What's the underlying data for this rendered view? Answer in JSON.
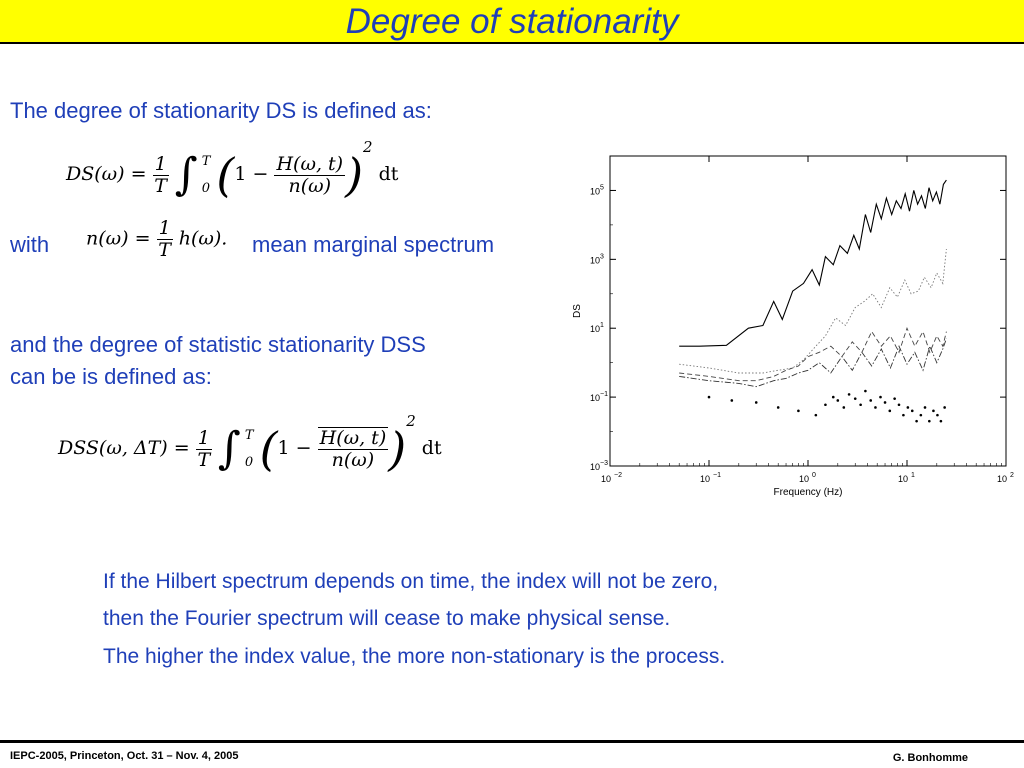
{
  "title": "Degree of stationarity",
  "intro": "The degree of stationarity DS is defined as:",
  "eq_ds": {
    "lhs": "DS(ω) = ",
    "frac_num": "1",
    "frac_den": "T",
    "int_upper": "T",
    "int_lower": "0",
    "one_minus": "1 − ",
    "inner_num": "H(ω, t)",
    "inner_den": "n(ω)",
    "power": "2",
    "dt": "dt"
  },
  "with_label": "with",
  "eq_n": {
    "lhs": "n(ω) = ",
    "frac_num": "1",
    "frac_den": "T",
    "rhs": "h(ω)."
  },
  "mean_marginal": "mean marginal spectrum",
  "dss_line1": "and the degree of statistic stationarity DSS",
  "dss_line2": "can be is defined as:",
  "eq_dss": {
    "lhs": "DSS(ω, ΔT) = ",
    "frac_num": "1",
    "frac_den": "T",
    "int_upper": "T",
    "int_lower": "0",
    "one_minus": "1 − ",
    "inner_num": "H(ω, t)",
    "inner_den": "n(ω)",
    "power": "2",
    "dt": "dt"
  },
  "bullets": [
    "If the Hilbert spectrum depends on time, the index will not be zero,",
    "then the Fourier spectrum will cease to make physical sense.",
    "The higher the index value, the more non-stationary is the process."
  ],
  "footer": {
    "left": "IEPC-2005, Princeton, Oct. 31 – Nov. 4, 2005",
    "right": "G. Bonhomme"
  },
  "colors": {
    "title_bg": "#ffff00",
    "text_blue": "#1f3fb8"
  },
  "chart_data": {
    "type": "line",
    "xlabel": "Frequency (Hz)",
    "ylabel": "DS",
    "xscale": "log",
    "yscale": "log",
    "xlim": [
      0.01,
      100
    ],
    "ylim": [
      0.001,
      1000000
    ],
    "x_tick_labels": [
      {
        "base": "10",
        "exp": "−2",
        "value": 0.01
      },
      {
        "base": "10",
        "exp": "−1",
        "value": 0.1
      },
      {
        "base": "10",
        "exp": "0",
        "value": 1
      },
      {
        "base": "10",
        "exp": "1",
        "value": 10
      },
      {
        "base": "10",
        "exp": "2",
        "value": 100
      }
    ],
    "y_tick_labels": [
      {
        "base": "10",
        "exp": "−3",
        "value": 0.001
      },
      {
        "base": "10",
        "exp": "−1",
        "value": 0.1
      },
      {
        "base": "10",
        "exp": "1",
        "value": 10
      },
      {
        "base": "10",
        "exp": "3",
        "value": 1000
      },
      {
        "base": "10",
        "exp": "5",
        "value": 100000
      }
    ],
    "series": [
      {
        "style": "solid",
        "x": [
          0.05,
          0.08,
          0.15,
          0.25,
          0.35,
          0.45,
          0.55,
          0.7,
          0.9,
          1.1,
          1.3,
          1.5,
          1.8,
          2.1,
          2.5,
          2.9,
          3.3,
          3.8,
          4.3,
          4.9,
          5.5,
          6.2,
          7.0,
          7.8,
          8.7,
          9.6,
          10.6,
          11.7,
          12.8,
          14.0,
          15.3,
          16.7,
          18.2,
          19.8,
          21.5,
          23.3,
          25.0
        ],
        "y": [
          3.0,
          3.0,
          3.2,
          10.0,
          12.0,
          60.0,
          18.0,
          120.0,
          200.0,
          500.0,
          180.0,
          1200.0,
          700.0,
          2500.0,
          1500.0,
          5000.0,
          2000.0,
          20000.0,
          6000.0,
          40000.0,
          15000.0,
          60000.0,
          20000.0,
          50000.0,
          30000.0,
          80000.0,
          25000.0,
          100000.0,
          40000.0,
          70000.0,
          30000.0,
          120000.0,
          50000.0,
          90000.0,
          40000.0,
          150000.0,
          200000.0
        ]
      },
      {
        "style": "dotted",
        "x": [
          0.05,
          0.1,
          0.2,
          0.35,
          0.5,
          0.7,
          0.9,
          1.2,
          1.5,
          1.9,
          2.4,
          3.0,
          3.7,
          4.5,
          5.5,
          6.7,
          8.0,
          9.5,
          11.0,
          13.0,
          15.0,
          17.5,
          20.0,
          23.0,
          25.0
        ],
        "y": [
          0.9,
          0.7,
          0.5,
          0.5,
          0.6,
          0.7,
          1.2,
          3.0,
          6.0,
          20.0,
          12.0,
          40.0,
          60.0,
          100.0,
          40.0,
          150.0,
          80.0,
          250.0,
          100.0,
          120.0,
          300.0,
          150.0,
          400.0,
          200.0,
          2000.0
        ]
      },
      {
        "style": "dashed",
        "x": [
          0.05,
          0.1,
          0.2,
          0.3,
          0.45,
          0.6,
          0.8,
          1.0,
          1.3,
          1.7,
          2.2,
          2.8,
          3.5,
          4.4,
          5.5,
          6.8,
          8.3,
          10.0,
          12.0,
          14.5,
          17.0,
          20.0,
          23.0,
          25.0
        ],
        "y": [
          0.5,
          0.4,
          0.3,
          0.3,
          0.4,
          0.6,
          0.8,
          1.5,
          2.0,
          3.0,
          1.5,
          4.0,
          2.0,
          8.0,
          3.0,
          6.0,
          2.0,
          10.0,
          3.0,
          8.0,
          2.0,
          6.0,
          3.0,
          8.0
        ]
      },
      {
        "style": "dashdot",
        "x": [
          0.05,
          0.1,
          0.2,
          0.3,
          0.45,
          0.6,
          0.8,
          1.0,
          1.3,
          1.7,
          2.2,
          2.8,
          3.5,
          4.4,
          5.5,
          6.8,
          8.3,
          10.0,
          12.0,
          14.5,
          17.0,
          20.0,
          23.0,
          25.0
        ],
        "y": [
          0.4,
          0.3,
          0.25,
          0.2,
          0.3,
          0.35,
          0.5,
          0.6,
          1.0,
          0.5,
          1.5,
          0.6,
          2.0,
          0.8,
          2.5,
          0.7,
          3.0,
          0.9,
          2.0,
          0.6,
          3.0,
          1.0,
          2.5,
          5.0
        ]
      },
      {
        "style": "points",
        "x": [
          0.1,
          0.17,
          0.3,
          0.5,
          0.8,
          1.2,
          1.5,
          1.8,
          2.0,
          2.3,
          2.6,
          3.0,
          3.4,
          3.8,
          4.3,
          4.8,
          5.4,
          6.0,
          6.7,
          7.5,
          8.3,
          9.2,
          10.2,
          11.3,
          12.5,
          13.8,
          15.2,
          16.8,
          18.5,
          20.3,
          22.0,
          24.0
        ],
        "y": [
          0.1,
          0.08,
          0.07,
          0.05,
          0.04,
          0.03,
          0.06,
          0.1,
          0.08,
          0.05,
          0.12,
          0.09,
          0.06,
          0.15,
          0.08,
          0.05,
          0.1,
          0.07,
          0.04,
          0.09,
          0.06,
          0.03,
          0.05,
          0.04,
          0.02,
          0.03,
          0.05,
          0.02,
          0.04,
          0.03,
          0.02,
          0.05
        ]
      }
    ]
  }
}
